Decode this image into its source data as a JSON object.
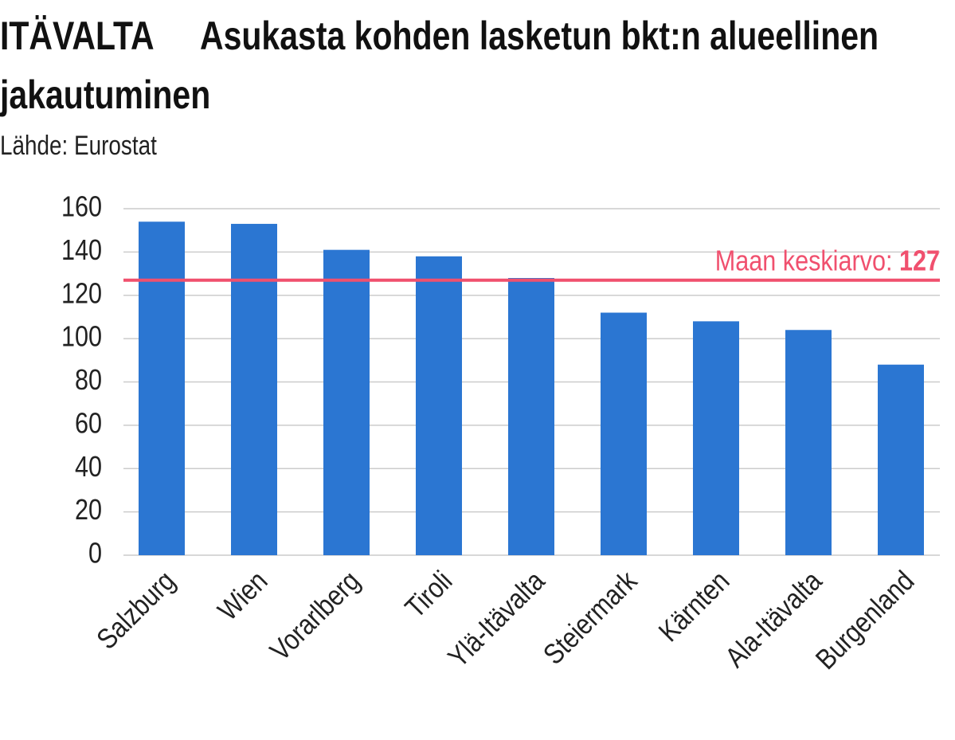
{
  "chart_data": {
    "type": "bar",
    "country": "ITÄVALTA",
    "title": "Asukasta kohden lasketun bkt:n alueellinen jakautuminen",
    "subtitle": "Lähde: Eurostat",
    "categories": [
      "Salzburg",
      "Wien",
      "Vorarlberg",
      "Tiroli",
      "Ylä-Itävalta",
      "Steiermark",
      "Kärnten",
      "Ala-Itävalta",
      "Burgenland"
    ],
    "values": [
      154,
      153,
      141,
      138,
      128,
      112,
      108,
      104,
      88
    ],
    "color": "#2b76d2",
    "ylim": [
      0,
      160
    ],
    "yticks": [
      0,
      20,
      40,
      60,
      80,
      100,
      120,
      140,
      160
    ],
    "grid": true,
    "reference_line": {
      "label": "Maan keskiarvo:",
      "value": 127,
      "color": "#f0506e"
    }
  }
}
